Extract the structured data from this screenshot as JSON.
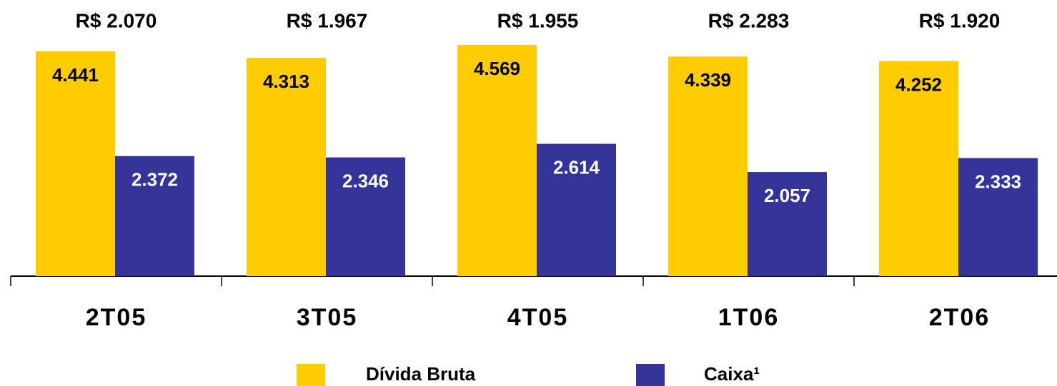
{
  "chart_data": {
    "type": "bar",
    "categories": [
      "2T05",
      "3T05",
      "4T05",
      "1T06",
      "2T06"
    ],
    "annotations": [
      "R$ 2.070",
      "R$ 1.967",
      "R$ 1.955",
      "R$ 2.283",
      "R$ 1.920"
    ],
    "series": [
      {
        "name": "Dívida Bruta",
        "color": "#FFCC00",
        "values": [
          4441,
          4313,
          4569,
          4339,
          4252
        ],
        "value_labels": [
          "4.441",
          "4.313",
          "4.569",
          "4.339",
          "4.252"
        ]
      },
      {
        "name": "Caixa¹",
        "color": "#333399",
        "values": [
          2372,
          2346,
          2614,
          2057,
          2333
        ],
        "value_labels": [
          "2.372",
          "2.346",
          "2.614",
          "2.057",
          "2.333"
        ]
      }
    ]
  }
}
